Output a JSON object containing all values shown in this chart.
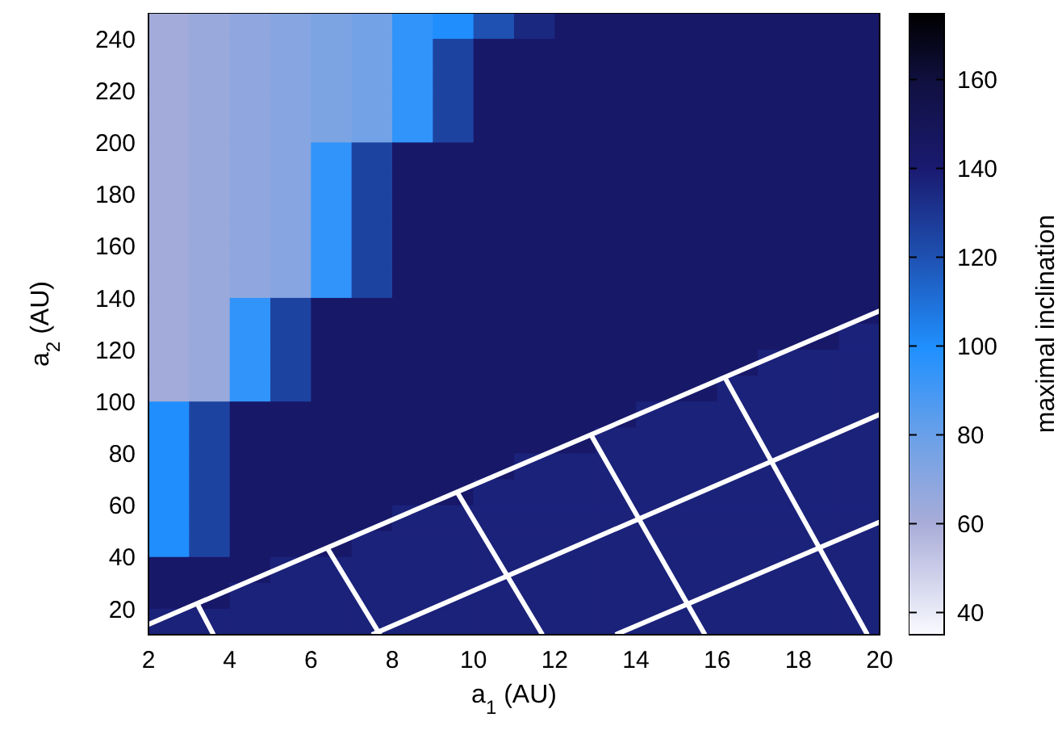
{
  "chart_data": {
    "type": "heatmap",
    "xlabel": "a$_{1}$ (AU)",
    "ylabel": "a$_{2}$ (AU)",
    "clabel": "maximal inclination",
    "xlim": [
      2,
      20
    ],
    "ylim": [
      10,
      250
    ],
    "xticks": [
      2,
      4,
      6,
      8,
      10,
      12,
      14,
      16,
      18,
      20
    ],
    "yticks": [
      20,
      40,
      60,
      80,
      100,
      120,
      140,
      160,
      180,
      200,
      220,
      240
    ],
    "clim": [
      35,
      175
    ],
    "cticks": [
      40,
      60,
      80,
      100,
      120,
      140,
      160
    ],
    "cells": [
      [
        62,
        65,
        68,
        71,
        74,
        77,
        95,
        100,
        120,
        135,
        143,
        143,
        143,
        143,
        143,
        143,
        143,
        143
      ],
      [
        62,
        65,
        68,
        71,
        74,
        77,
        95,
        125,
        143,
        143,
        143,
        143,
        143,
        143,
        143,
        143,
        143,
        143
      ],
      [
        62,
        65,
        68,
        71,
        74,
        77,
        95,
        125,
        143,
        143,
        143,
        143,
        143,
        143,
        143,
        143,
        143,
        143
      ],
      [
        62,
        65,
        68,
        71,
        74,
        77,
        95,
        125,
        143,
        143,
        143,
        143,
        143,
        143,
        143,
        143,
        143,
        143
      ],
      [
        62,
        65,
        68,
        71,
        74,
        77,
        95,
        125,
        143,
        143,
        143,
        143,
        143,
        143,
        143,
        143,
        143,
        143
      ],
      [
        62,
        65,
        68,
        71,
        95,
        125,
        143,
        143,
        143,
        143,
        143,
        143,
        143,
        143,
        143,
        143,
        143,
        143
      ],
      [
        62,
        65,
        68,
        71,
        95,
        125,
        143,
        143,
        143,
        143,
        143,
        143,
        143,
        143,
        143,
        143,
        143,
        143
      ],
      [
        62,
        65,
        68,
        71,
        95,
        125,
        143,
        143,
        143,
        143,
        143,
        143,
        143,
        143,
        143,
        143,
        143,
        143
      ],
      [
        62,
        65,
        68,
        71,
        95,
        125,
        143,
        143,
        143,
        143,
        143,
        143,
        143,
        143,
        143,
        143,
        143,
        143
      ],
      [
        62,
        65,
        68,
        71,
        95,
        125,
        143,
        143,
        143,
        143,
        143,
        143,
        143,
        143,
        143,
        143,
        143,
        143
      ],
      [
        62,
        65,
        68,
        71,
        95,
        125,
        143,
        143,
        143,
        143,
        143,
        143,
        143,
        143,
        143,
        143,
        143,
        143
      ],
      [
        62,
        65,
        95,
        125,
        143,
        143,
        143,
        143,
        143,
        143,
        143,
        143,
        143,
        143,
        143,
        143,
        143,
        143
      ],
      [
        62,
        65,
        95,
        125,
        143,
        143,
        143,
        143,
        143,
        143,
        143,
        143,
        143,
        143,
        143,
        143,
        143,
        137
      ],
      [
        62,
        65,
        95,
        125,
        143,
        143,
        143,
        143,
        143,
        143,
        143,
        143,
        143,
        143,
        143,
        137,
        137,
        137
      ],
      [
        62,
        65,
        95,
        125,
        143,
        143,
        143,
        143,
        143,
        143,
        143,
        143,
        143,
        143,
        137,
        137,
        137,
        137
      ],
      [
        100,
        125,
        143,
        143,
        143,
        143,
        143,
        143,
        143,
        143,
        143,
        143,
        137,
        137,
        137,
        137,
        137,
        137
      ],
      [
        100,
        125,
        143,
        143,
        143,
        143,
        143,
        143,
        143,
        143,
        143,
        137,
        137,
        137,
        137,
        137,
        137,
        137
      ],
      [
        100,
        125,
        143,
        143,
        143,
        143,
        143,
        143,
        143,
        137,
        137,
        137,
        137,
        137,
        137,
        137,
        137,
        137
      ],
      [
        100,
        125,
        143,
        143,
        143,
        143,
        143,
        143,
        137,
        137,
        137,
        137,
        137,
        137,
        137,
        137,
        137,
        137
      ],
      [
        100,
        125,
        143,
        143,
        143,
        143,
        137,
        137,
        137,
        137,
        137,
        137,
        137,
        137,
        137,
        137,
        137,
        137
      ],
      [
        100,
        125,
        143,
        143,
        143,
        137,
        137,
        137,
        137,
        137,
        137,
        137,
        137,
        137,
        137,
        137,
        137,
        137
      ],
      [
        143,
        143,
        143,
        137,
        137,
        137,
        137,
        137,
        137,
        137,
        137,
        137,
        137,
        137,
        137,
        137,
        137,
        137
      ],
      [
        143,
        143,
        137,
        137,
        137,
        137,
        137,
        137,
        137,
        137,
        137,
        137,
        137,
        137,
        137,
        137,
        137,
        137
      ],
      [
        137,
        137,
        137,
        137,
        137,
        137,
        137,
        137,
        137,
        137,
        137,
        137,
        137,
        137,
        137,
        137,
        137,
        137
      ]
    ]
  }
}
